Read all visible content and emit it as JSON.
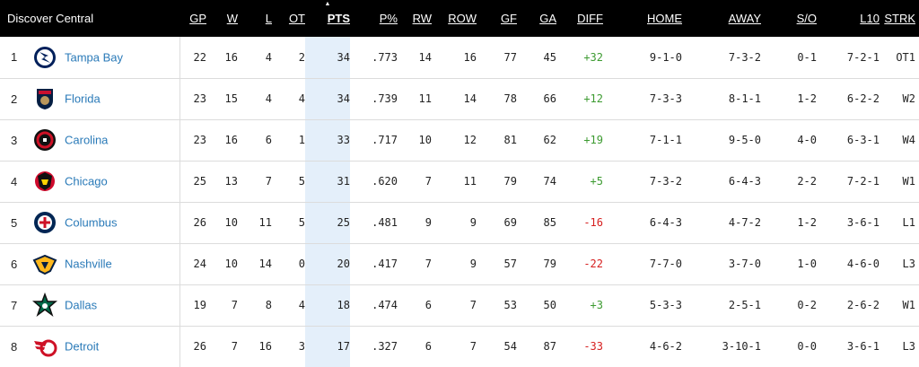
{
  "header": {
    "title": "Discover Central",
    "columns": [
      "GP",
      "W",
      "L",
      "OT",
      "PTS",
      "P%",
      "RW",
      "ROW",
      "GF",
      "GA",
      "DIFF",
      "HOME",
      "AWAY",
      "S/O",
      "L10",
      "STRK"
    ],
    "sort_arrow": "▲"
  },
  "colors": {
    "diff_positive": "#3d9b31",
    "diff_negative": "#d61f1f",
    "pts_highlight": "#e4effa",
    "team_link": "#2a7ab8"
  },
  "teams": [
    {
      "rank": "1",
      "logo": "tampa-bay-lightning-logo",
      "name": "Tampa Bay",
      "gp": "22",
      "w": "16",
      "l": "4",
      "ot": "2",
      "pts": "34",
      "pct": ".773",
      "rw": "14",
      "row": "16",
      "gf": "77",
      "ga": "45",
      "diff": "+32",
      "home": "9-1-0",
      "away": "7-3-2",
      "so": "0-1",
      "l10": "7-2-1",
      "strk": "OT1"
    },
    {
      "rank": "2",
      "logo": "florida-panthers-logo",
      "name": "Florida",
      "gp": "23",
      "w": "15",
      "l": "4",
      "ot": "4",
      "pts": "34",
      "pct": ".739",
      "rw": "11",
      "row": "14",
      "gf": "78",
      "ga": "66",
      "diff": "+12",
      "home": "7-3-3",
      "away": "8-1-1",
      "so": "1-2",
      "l10": "6-2-2",
      "strk": "W2"
    },
    {
      "rank": "3",
      "logo": "carolina-hurricanes-logo",
      "name": "Carolina",
      "gp": "23",
      "w": "16",
      "l": "6",
      "ot": "1",
      "pts": "33",
      "pct": ".717",
      "rw": "10",
      "row": "12",
      "gf": "81",
      "ga": "62",
      "diff": "+19",
      "home": "7-1-1",
      "away": "9-5-0",
      "so": "4-0",
      "l10": "6-3-1",
      "strk": "W4"
    },
    {
      "rank": "4",
      "logo": "chicago-blackhawks-logo",
      "name": "Chicago",
      "gp": "25",
      "w": "13",
      "l": "7",
      "ot": "5",
      "pts": "31",
      "pct": ".620",
      "rw": "7",
      "row": "11",
      "gf": "79",
      "ga": "74",
      "diff": "+5",
      "home": "7-3-2",
      "away": "6-4-3",
      "so": "2-2",
      "l10": "7-2-1",
      "strk": "W1"
    },
    {
      "rank": "5",
      "logo": "columbus-blue-jackets-logo",
      "name": "Columbus",
      "gp": "26",
      "w": "10",
      "l": "11",
      "ot": "5",
      "pts": "25",
      "pct": ".481",
      "rw": "9",
      "row": "9",
      "gf": "69",
      "ga": "85",
      "diff": "-16",
      "home": "6-4-3",
      "away": "4-7-2",
      "so": "1-2",
      "l10": "3-6-1",
      "strk": "L1"
    },
    {
      "rank": "6",
      "logo": "nashville-predators-logo",
      "name": "Nashville",
      "gp": "24",
      "w": "10",
      "l": "14",
      "ot": "0",
      "pts": "20",
      "pct": ".417",
      "rw": "7",
      "row": "9",
      "gf": "57",
      "ga": "79",
      "diff": "-22",
      "home": "7-7-0",
      "away": "3-7-0",
      "so": "1-0",
      "l10": "4-6-0",
      "strk": "L3"
    },
    {
      "rank": "7",
      "logo": "dallas-stars-logo",
      "name": "Dallas",
      "gp": "19",
      "w": "7",
      "l": "8",
      "ot": "4",
      "pts": "18",
      "pct": ".474",
      "rw": "6",
      "row": "7",
      "gf": "53",
      "ga": "50",
      "diff": "+3",
      "home": "5-3-3",
      "away": "2-5-1",
      "so": "0-2",
      "l10": "2-6-2",
      "strk": "W1"
    },
    {
      "rank": "8",
      "logo": "detroit-red-wings-logo",
      "name": "Detroit",
      "gp": "26",
      "w": "7",
      "l": "16",
      "ot": "3",
      "pts": "17",
      "pct": ".327",
      "rw": "6",
      "row": "7",
      "gf": "54",
      "ga": "87",
      "diff": "-33",
      "home": "4-6-2",
      "away": "3-10-1",
      "so": "0-0",
      "l10": "3-6-1",
      "strk": "L3"
    }
  ]
}
